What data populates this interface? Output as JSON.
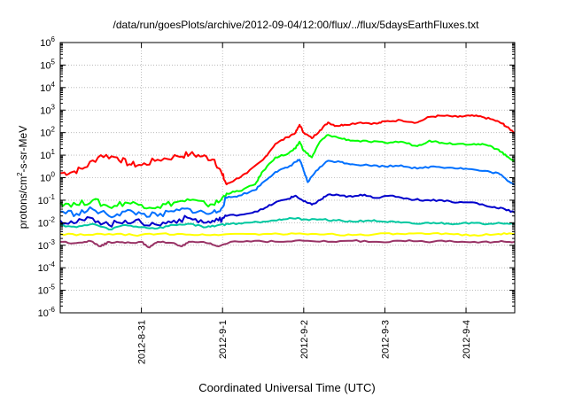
{
  "chart_data": {
    "type": "line",
    "title": "/data/run/goesPlots/archive/2012-09-04/12:00/flux/../flux/5daysEarthFluxes.txt",
    "xlabel": "Coordinated Universal Time (UTC)",
    "ylabel_parts": {
      "pre": "protons/cm",
      "sup": "2",
      "post": "-s-sr-MeV"
    },
    "y_scale": "log",
    "ylim_exponents": [
      -6,
      6
    ],
    "y_tick_labels": [
      {
        "base": "10",
        "exp": "6"
      },
      {
        "base": "10",
        "exp": "5"
      },
      {
        "base": "10",
        "exp": "4"
      },
      {
        "base": "10",
        "exp": "3"
      },
      {
        "base": "10",
        "exp": "2"
      },
      {
        "base": "10",
        "exp": "1"
      },
      {
        "base": "10",
        "exp": "0"
      },
      {
        "base": "10",
        "exp": "-1"
      },
      {
        "base": "10",
        "exp": "-2"
      },
      {
        "base": "10",
        "exp": "-3"
      },
      {
        "base": "10",
        "exp": "-4"
      },
      {
        "base": "10",
        "exp": "-5"
      },
      {
        "base": "10",
        "exp": "-6"
      }
    ],
    "xlim": [
      0,
      5.6
    ],
    "x_ticks": [
      {
        "value": 1,
        "label": "2012-8-31"
      },
      {
        "value": 2,
        "label": "2012-9-1"
      },
      {
        "value": 3,
        "label": "2012-9-2"
      },
      {
        "value": 4,
        "label": "2012-9-3"
      },
      {
        "value": 5,
        "label": "2012-9-4"
      }
    ],
    "grid": true,
    "series": [
      {
        "color": "#ff0000",
        "points": [
          [
            0,
            0.2
          ],
          [
            0.15,
            0.25
          ],
          [
            0.3,
            0.45
          ],
          [
            0.5,
            1.0
          ],
          [
            0.7,
            0.9
          ],
          [
            0.85,
            0.6
          ],
          [
            1.0,
            0.55
          ],
          [
            1.2,
            0.8
          ],
          [
            1.45,
            0.95
          ],
          [
            1.6,
            1.05
          ],
          [
            1.75,
            0.95
          ],
          [
            1.9,
            0.8
          ],
          [
            2.0,
            0.1
          ],
          [
            2.05,
            -0.3
          ],
          [
            2.15,
            -0.1
          ],
          [
            2.3,
            0.2
          ],
          [
            2.5,
            0.8
          ],
          [
            2.65,
            1.5
          ],
          [
            2.8,
            1.8
          ],
          [
            2.9,
            2.0
          ],
          [
            2.95,
            2.35
          ],
          [
            3.0,
            2.0
          ],
          [
            3.1,
            1.75
          ],
          [
            3.2,
            2.1
          ],
          [
            3.3,
            2.45
          ],
          [
            3.4,
            2.3
          ],
          [
            3.5,
            2.35
          ],
          [
            3.7,
            2.45
          ],
          [
            3.9,
            2.4
          ],
          [
            4.0,
            2.5
          ],
          [
            4.2,
            2.55
          ],
          [
            4.4,
            2.45
          ],
          [
            4.55,
            2.7
          ],
          [
            4.7,
            2.75
          ],
          [
            4.9,
            2.7
          ],
          [
            5.05,
            2.75
          ],
          [
            5.2,
            2.7
          ],
          [
            5.35,
            2.55
          ],
          [
            5.45,
            2.4
          ],
          [
            5.5,
            2.25
          ],
          [
            5.6,
            2.0
          ]
        ]
      },
      {
        "color": "#00ff00",
        "points": [
          [
            0,
            -1.1
          ],
          [
            0.2,
            -1.2
          ],
          [
            0.4,
            -1.0
          ],
          [
            0.6,
            -1.3
          ],
          [
            0.8,
            -1.1
          ],
          [
            1.0,
            -1.2
          ],
          [
            1.2,
            -1.3
          ],
          [
            1.4,
            -1.1
          ],
          [
            1.6,
            -1.0
          ],
          [
            1.8,
            -1.2
          ],
          [
            1.95,
            -1.1
          ],
          [
            2.05,
            -0.7
          ],
          [
            2.2,
            -0.6
          ],
          [
            2.4,
            -0.3
          ],
          [
            2.5,
            0.3
          ],
          [
            2.65,
            0.9
          ],
          [
            2.8,
            1.05
          ],
          [
            2.9,
            1.3
          ],
          [
            2.95,
            1.6
          ],
          [
            3.0,
            1.2
          ],
          [
            3.1,
            0.9
          ],
          [
            3.2,
            1.6
          ],
          [
            3.3,
            1.9
          ],
          [
            3.45,
            1.75
          ],
          [
            3.6,
            1.65
          ],
          [
            3.8,
            1.6
          ],
          [
            4.0,
            1.55
          ],
          [
            4.2,
            1.6
          ],
          [
            4.4,
            1.4
          ],
          [
            4.55,
            1.65
          ],
          [
            4.7,
            1.55
          ],
          [
            4.9,
            1.5
          ],
          [
            5.1,
            1.5
          ],
          [
            5.25,
            1.45
          ],
          [
            5.4,
            1.25
          ],
          [
            5.5,
            0.95
          ],
          [
            5.6,
            0.75
          ]
        ]
      },
      {
        "color": "#0070ff",
        "points": [
          [
            0,
            -1.5
          ],
          [
            0.2,
            -1.6
          ],
          [
            0.4,
            -1.4
          ],
          [
            0.6,
            -1.7
          ],
          [
            0.8,
            -1.5
          ],
          [
            1.0,
            -1.6
          ],
          [
            1.2,
            -1.7
          ],
          [
            1.4,
            -1.5
          ],
          [
            1.6,
            -1.4
          ],
          [
            1.8,
            -1.6
          ],
          [
            1.95,
            -1.5
          ],
          [
            2.05,
            -0.9
          ],
          [
            2.2,
            -0.8
          ],
          [
            2.4,
            -0.55
          ],
          [
            2.5,
            -0.2
          ],
          [
            2.65,
            0.25
          ],
          [
            2.8,
            0.45
          ],
          [
            2.9,
            0.7
          ],
          [
            2.95,
            0.8
          ],
          [
            3.0,
            0.3
          ],
          [
            3.05,
            -0.2
          ],
          [
            3.15,
            0.3
          ],
          [
            3.3,
            0.75
          ],
          [
            3.45,
            0.7
          ],
          [
            3.6,
            0.6
          ],
          [
            3.8,
            0.55
          ],
          [
            4.0,
            0.5
          ],
          [
            4.2,
            0.55
          ],
          [
            4.4,
            0.4
          ],
          [
            4.6,
            0.5
          ],
          [
            4.8,
            0.45
          ],
          [
            5.0,
            0.4
          ],
          [
            5.2,
            0.3
          ],
          [
            5.4,
            0.2
          ],
          [
            5.5,
            -0.1
          ],
          [
            5.6,
            -0.3
          ]
        ]
      },
      {
        "color": "#0000cc",
        "points": [
          [
            0,
            -1.9
          ],
          [
            0.2,
            -2.0
          ],
          [
            0.4,
            -1.8
          ],
          [
            0.6,
            -2.1
          ],
          [
            0.8,
            -1.9
          ],
          [
            1.0,
            -2.0
          ],
          [
            1.2,
            -2.1
          ],
          [
            1.4,
            -1.9
          ],
          [
            1.6,
            -1.8
          ],
          [
            1.8,
            -2.0
          ],
          [
            1.95,
            -1.9
          ],
          [
            2.05,
            -1.7
          ],
          [
            2.3,
            -1.6
          ],
          [
            2.5,
            -1.4
          ],
          [
            2.65,
            -1.1
          ],
          [
            2.8,
            -0.95
          ],
          [
            2.9,
            -0.8
          ],
          [
            3.0,
            -1.05
          ],
          [
            3.1,
            -1.2
          ],
          [
            3.2,
            -1.0
          ],
          [
            3.3,
            -0.75
          ],
          [
            3.45,
            -0.8
          ],
          [
            3.6,
            -0.85
          ],
          [
            3.75,
            -0.75
          ],
          [
            3.9,
            -0.9
          ],
          [
            4.1,
            -0.8
          ],
          [
            4.3,
            -0.95
          ],
          [
            4.5,
            -1.0
          ],
          [
            4.7,
            -1.0
          ],
          [
            4.9,
            -1.1
          ],
          [
            5.1,
            -1.1
          ],
          [
            5.3,
            -1.3
          ],
          [
            5.45,
            -1.35
          ],
          [
            5.6,
            -1.55
          ]
        ]
      },
      {
        "color": "#00c8a0",
        "points": [
          [
            0,
            -2.1
          ],
          [
            0.2,
            -2.2
          ],
          [
            0.4,
            -2.05
          ],
          [
            0.6,
            -2.3
          ],
          [
            0.8,
            -2.1
          ],
          [
            1.0,
            -2.2
          ],
          [
            1.2,
            -2.25
          ],
          [
            1.4,
            -2.1
          ],
          [
            1.6,
            -2.05
          ],
          [
            1.8,
            -2.2
          ],
          [
            1.95,
            -2.1
          ],
          [
            2.1,
            -2.05
          ],
          [
            2.3,
            -2.0
          ],
          [
            2.5,
            -1.95
          ],
          [
            2.7,
            -1.85
          ],
          [
            2.85,
            -1.8
          ],
          [
            3.0,
            -1.85
          ],
          [
            3.2,
            -1.85
          ],
          [
            3.4,
            -1.9
          ],
          [
            3.6,
            -1.95
          ],
          [
            3.8,
            -1.9
          ],
          [
            4.0,
            -1.95
          ],
          [
            4.2,
            -2.0
          ],
          [
            4.4,
            -2.05
          ],
          [
            4.6,
            -2.0
          ],
          [
            4.8,
            -2.05
          ],
          [
            5.0,
            -2.0
          ],
          [
            5.2,
            -2.05
          ],
          [
            5.4,
            -2.0
          ],
          [
            5.6,
            -2.05
          ]
        ]
      },
      {
        "color": "#ffff00",
        "points": [
          [
            0,
            -2.5
          ],
          [
            0.3,
            -2.55
          ],
          [
            0.6,
            -2.5
          ],
          [
            0.9,
            -2.55
          ],
          [
            1.2,
            -2.5
          ],
          [
            1.5,
            -2.5
          ],
          [
            1.8,
            -2.55
          ],
          [
            2.1,
            -2.5
          ],
          [
            2.4,
            -2.5
          ],
          [
            2.7,
            -2.5
          ],
          [
            3.0,
            -2.5
          ],
          [
            3.3,
            -2.5
          ],
          [
            3.6,
            -2.55
          ],
          [
            3.9,
            -2.5
          ],
          [
            4.2,
            -2.5
          ],
          [
            4.5,
            -2.5
          ],
          [
            4.8,
            -2.5
          ],
          [
            5.1,
            -2.55
          ],
          [
            5.4,
            -2.5
          ],
          [
            5.6,
            -2.5
          ]
        ]
      },
      {
        "color": "#993366",
        "points": [
          [
            0,
            -2.85
          ],
          [
            0.2,
            -2.9
          ],
          [
            0.35,
            -2.8
          ],
          [
            0.5,
            -3.05
          ],
          [
            0.6,
            -2.85
          ],
          [
            0.8,
            -2.9
          ],
          [
            1.0,
            -2.85
          ],
          [
            1.1,
            -3.1
          ],
          [
            1.2,
            -2.85
          ],
          [
            1.4,
            -2.9
          ],
          [
            1.5,
            -3.05
          ],
          [
            1.6,
            -2.85
          ],
          [
            1.8,
            -2.9
          ],
          [
            1.95,
            -3.05
          ],
          [
            2.1,
            -2.85
          ],
          [
            2.4,
            -2.8
          ],
          [
            2.7,
            -2.85
          ],
          [
            3.0,
            -2.8
          ],
          [
            3.3,
            -2.85
          ],
          [
            3.6,
            -2.8
          ],
          [
            3.9,
            -2.85
          ],
          [
            4.2,
            -2.8
          ],
          [
            4.5,
            -2.85
          ],
          [
            4.8,
            -2.8
          ],
          [
            5.1,
            -2.85
          ],
          [
            5.4,
            -2.85
          ],
          [
            5.6,
            -2.85
          ]
        ]
      }
    ]
  }
}
